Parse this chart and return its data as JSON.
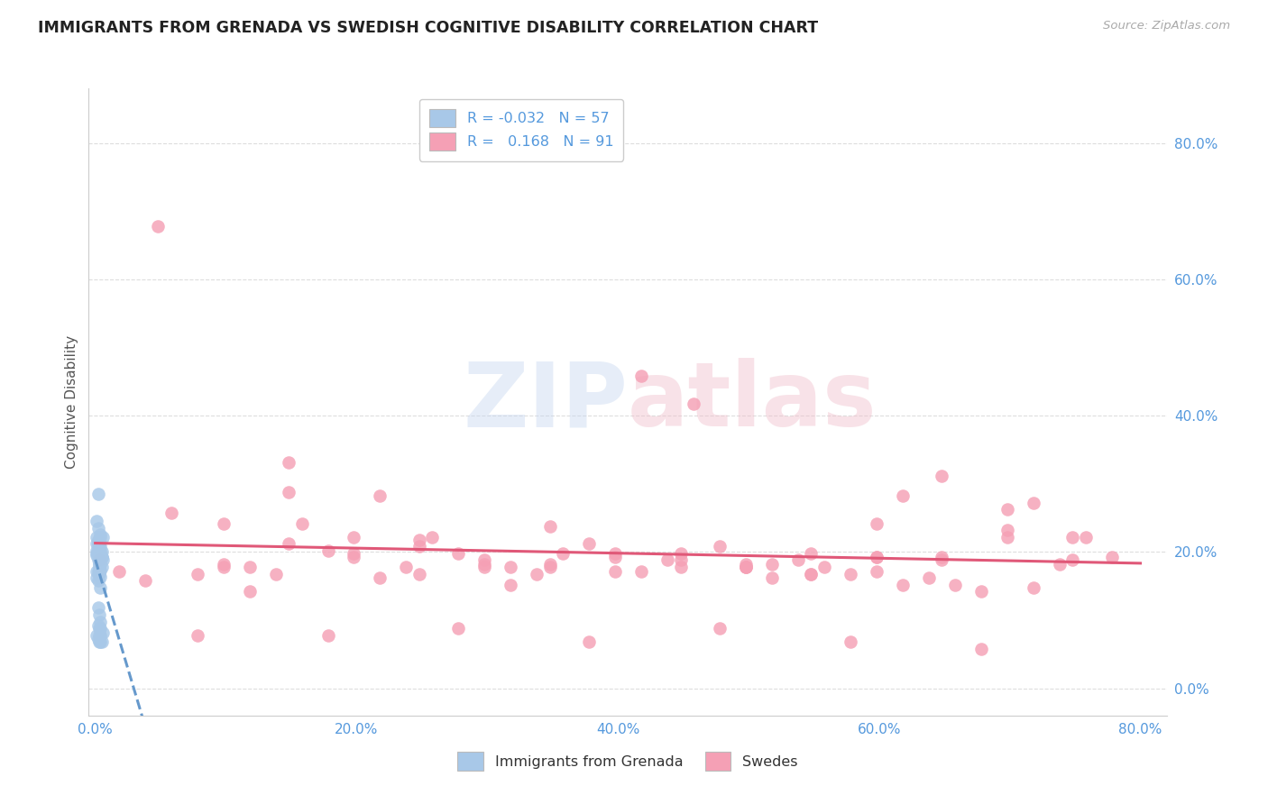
{
  "title": "IMMIGRANTS FROM GRENADA VS SWEDISH COGNITIVE DISABILITY CORRELATION CHART",
  "source": "Source: ZipAtlas.com",
  "ylabel": "Cognitive Disability",
  "xlim": [
    -0.005,
    0.82
  ],
  "ylim": [
    -0.04,
    0.88
  ],
  "legend_blue_r": "-0.032",
  "legend_blue_n": "57",
  "legend_pink_r": "0.168",
  "legend_pink_n": "91",
  "blue_color": "#a8c8e8",
  "pink_color": "#f5a0b5",
  "blue_line_color": "#6699cc",
  "pink_line_color": "#e05878",
  "watermark_zip": "ZIP",
  "watermark_atlas": "atlas",
  "blue_scatter_x": [
    0.002,
    0.004,
    0.001,
    0.003,
    0.005,
    0.006,
    0.003,
    0.004,
    0.002,
    0.003,
    0.004,
    0.001,
    0.002,
    0.003,
    0.004,
    0.005,
    0.003,
    0.002,
    0.004,
    0.001,
    0.005,
    0.003,
    0.002,
    0.001,
    0.004,
    0.003,
    0.002,
    0.003,
    0.004,
    0.006,
    0.001,
    0.002,
    0.003,
    0.004,
    0.003,
    0.002,
    0.004,
    0.001,
    0.005,
    0.003,
    0.002,
    0.001,
    0.003,
    0.004,
    0.002,
    0.003,
    0.004,
    0.006,
    0.001,
    0.002,
    0.003,
    0.004,
    0.003,
    0.002,
    0.004,
    0.001,
    0.005
  ],
  "blue_scatter_y": [
    0.285,
    0.225,
    0.195,
    0.215,
    0.2,
    0.188,
    0.198,
    0.208,
    0.218,
    0.183,
    0.173,
    0.245,
    0.235,
    0.212,
    0.192,
    0.178,
    0.168,
    0.158,
    0.148,
    0.172,
    0.192,
    0.178,
    0.188,
    0.198,
    0.163,
    0.172,
    0.118,
    0.108,
    0.098,
    0.222,
    0.202,
    0.212,
    0.088,
    0.078,
    0.068,
    0.212,
    0.202,
    0.222,
    0.192,
    0.182,
    0.172,
    0.162,
    0.212,
    0.222,
    0.072,
    0.078,
    0.068,
    0.082,
    0.212,
    0.202,
    0.192,
    0.182,
    0.172,
    0.092,
    0.088,
    0.078,
    0.068
  ],
  "pink_scatter_x": [
    0.003,
    0.018,
    0.038,
    0.058,
    0.078,
    0.098,
    0.118,
    0.138,
    0.158,
    0.178,
    0.198,
    0.218,
    0.238,
    0.258,
    0.278,
    0.298,
    0.318,
    0.338,
    0.358,
    0.378,
    0.398,
    0.418,
    0.438,
    0.458,
    0.478,
    0.498,
    0.518,
    0.538,
    0.558,
    0.578,
    0.598,
    0.618,
    0.638,
    0.658,
    0.678,
    0.698,
    0.718,
    0.738,
    0.758,
    0.778,
    0.148,
    0.248,
    0.348,
    0.448,
    0.548,
    0.648,
    0.098,
    0.198,
    0.298,
    0.398,
    0.498,
    0.598,
    0.698,
    0.078,
    0.178,
    0.278,
    0.378,
    0.478,
    0.578,
    0.678,
    0.118,
    0.218,
    0.318,
    0.418,
    0.518,
    0.618,
    0.718,
    0.048,
    0.548,
    0.448,
    0.348,
    0.248,
    0.148,
    0.648,
    0.748,
    0.598,
    0.698,
    0.498,
    0.398,
    0.298,
    0.198,
    0.098,
    0.548,
    0.448,
    0.348,
    0.248,
    0.148,
    0.648,
    0.748,
    0.598,
    0.498
  ],
  "pink_scatter_y": [
    0.188,
    0.172,
    0.158,
    0.258,
    0.168,
    0.182,
    0.178,
    0.168,
    0.242,
    0.202,
    0.198,
    0.282,
    0.178,
    0.222,
    0.198,
    0.188,
    0.178,
    0.168,
    0.198,
    0.212,
    0.198,
    0.458,
    0.188,
    0.418,
    0.208,
    0.178,
    0.182,
    0.188,
    0.178,
    0.168,
    0.242,
    0.282,
    0.162,
    0.152,
    0.142,
    0.262,
    0.272,
    0.182,
    0.222,
    0.192,
    0.332,
    0.218,
    0.238,
    0.198,
    0.168,
    0.188,
    0.242,
    0.222,
    0.182,
    0.172,
    0.178,
    0.172,
    0.222,
    0.078,
    0.078,
    0.088,
    0.068,
    0.088,
    0.068,
    0.058,
    0.142,
    0.162,
    0.152,
    0.172,
    0.162,
    0.152,
    0.148,
    0.678,
    0.168,
    0.178,
    0.182,
    0.208,
    0.288,
    0.312,
    0.222,
    0.192,
    0.232,
    0.182,
    0.192,
    0.178,
    0.192,
    0.178,
    0.198,
    0.188,
    0.178,
    0.168,
    0.212,
    0.192,
    0.188,
    0.192,
    0.178
  ],
  "yticks": [
    0.0,
    0.2,
    0.4,
    0.6,
    0.8
  ],
  "ytick_labels_right": [
    "0.0%",
    "20.0%",
    "40.0%",
    "60.0%",
    "80.0%"
  ],
  "xticks": [
    0.0,
    0.2,
    0.4,
    0.6,
    0.8
  ],
  "xtick_labels": [
    "0.0%",
    "20.0%",
    "40.0%",
    "60.0%",
    "80.0%"
  ],
  "grid_color": "#dddddd",
  "spine_color": "#cccccc",
  "tick_label_color": "#5599dd",
  "title_color": "#222222",
  "source_color": "#aaaaaa",
  "ylabel_color": "#555555"
}
